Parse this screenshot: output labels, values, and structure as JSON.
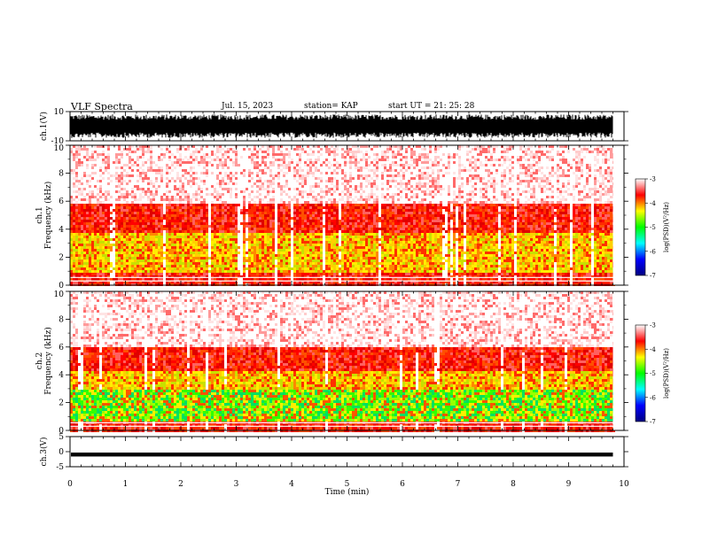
{
  "header": {
    "title": "VLF Spectra",
    "date": "Jul. 15, 2023",
    "station": "station= KAP",
    "start": "start UT = 21: 25: 28"
  },
  "chart_data": [
    {
      "type": "line",
      "name": "ch1-waveform",
      "ylabel": "ch.1(V)",
      "ylim": [
        -10,
        10
      ],
      "yticks": [
        "10",
        "-10"
      ],
      "xlim": [
        0,
        10
      ],
      "note_values": "dense waveform spanning roughly -8 to 8 V through 0-9.8 min"
    },
    {
      "type": "heatmap",
      "name": "ch1-spectrogram",
      "ylabel": "ch.1 Frequency (kHz)",
      "ylim": [
        0,
        10
      ],
      "yticks": [
        "0",
        "2",
        "4",
        "6",
        "8",
        "10"
      ],
      "xlim": [
        0,
        10
      ],
      "data_end_min": 9.8,
      "colorbar": {
        "label": "log(PSD)(V²/Hz)",
        "range": [
          -7,
          -3
        ],
        "ticks": [
          "-3",
          "-4",
          "-5",
          "-6",
          "-7"
        ],
        "colors": [
          "#000080",
          "#0000ff",
          "#00ffff",
          "#00ff00",
          "#ffff00",
          "#ff0000",
          "#ffffff"
        ]
      },
      "bands": [
        {
          "from_khz": 0,
          "to_khz": 1,
          "level": "red"
        },
        {
          "from_khz": 1,
          "to_khz": 3.8,
          "level": "yellow"
        },
        {
          "from_khz": 3.8,
          "to_khz": 6,
          "level": "red"
        },
        {
          "from_khz": 6,
          "to_khz": 10,
          "level": "pink"
        }
      ]
    },
    {
      "type": "heatmap",
      "name": "ch2-spectrogram",
      "ylabel": "ch.2 Frequency (kHz)",
      "ylim": [
        0,
        10
      ],
      "yticks": [
        "0",
        "2",
        "4",
        "6",
        "8",
        "10"
      ],
      "xlim": [
        0,
        10
      ],
      "data_end_min": 9.8,
      "colorbar": {
        "label": "log(PSD)(V²/Hz)",
        "range": [
          -7,
          -3
        ],
        "ticks": [
          "-3",
          "-4",
          "-5",
          "-6",
          "-7"
        ],
        "colors": [
          "#000080",
          "#0000ff",
          "#00ffff",
          "#00ff00",
          "#ffff00",
          "#ff0000",
          "#ffffff"
        ]
      },
      "bands": [
        {
          "from_khz": 0,
          "to_khz": 0.8,
          "level": "red"
        },
        {
          "from_khz": 0.8,
          "to_khz": 3,
          "level": "green"
        },
        {
          "from_khz": 3,
          "to_khz": 4.3,
          "level": "yellow"
        },
        {
          "from_khz": 4.3,
          "to_khz": 6,
          "level": "red"
        },
        {
          "from_khz": 6,
          "to_khz": 10,
          "level": "pink"
        }
      ]
    },
    {
      "type": "line",
      "name": "ch3-waveform",
      "ylabel": "ch.3(V)",
      "ylim": [
        -5,
        5
      ],
      "yticks": [
        "5",
        "0",
        "-5"
      ],
      "xlim": [
        0,
        10
      ],
      "note_values": "flat trace near -1 V from 0 to 9.8 min"
    }
  ],
  "xaxis": {
    "label": "Time (min)",
    "ticks": [
      "0",
      "1",
      "2",
      "3",
      "4",
      "5",
      "6",
      "7",
      "8",
      "9",
      "10"
    ]
  }
}
